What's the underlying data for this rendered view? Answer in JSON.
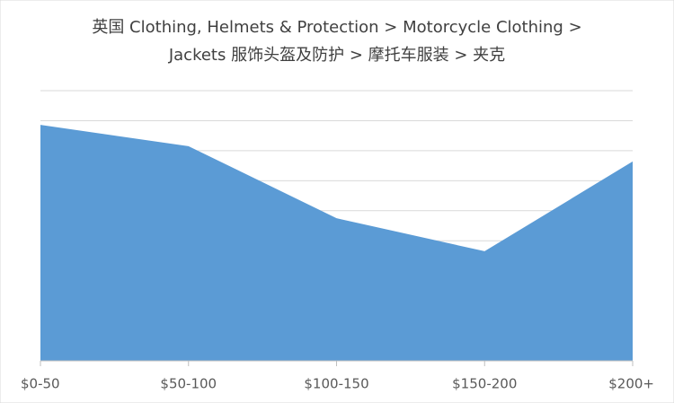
{
  "chart_data": {
    "type": "area",
    "title": [
      "英国  Clothing, Helmets & Protection > Motorcycle Clothing >",
      "Jackets 服饰头盔及防护 > 摩托车服装 > 夹克"
    ],
    "categories": [
      "$0-50",
      "$50-100",
      "$100-150",
      "$150-200",
      "$200+"
    ],
    "values": [
      7.86,
      7.15,
      4.75,
      3.65,
      6.64
    ],
    "color": "#5b9bd5",
    "ylim": [
      0,
      9
    ],
    "yticks": [
      0,
      1,
      2,
      3,
      4,
      5,
      6,
      7,
      8,
      9
    ],
    "grid": true
  }
}
